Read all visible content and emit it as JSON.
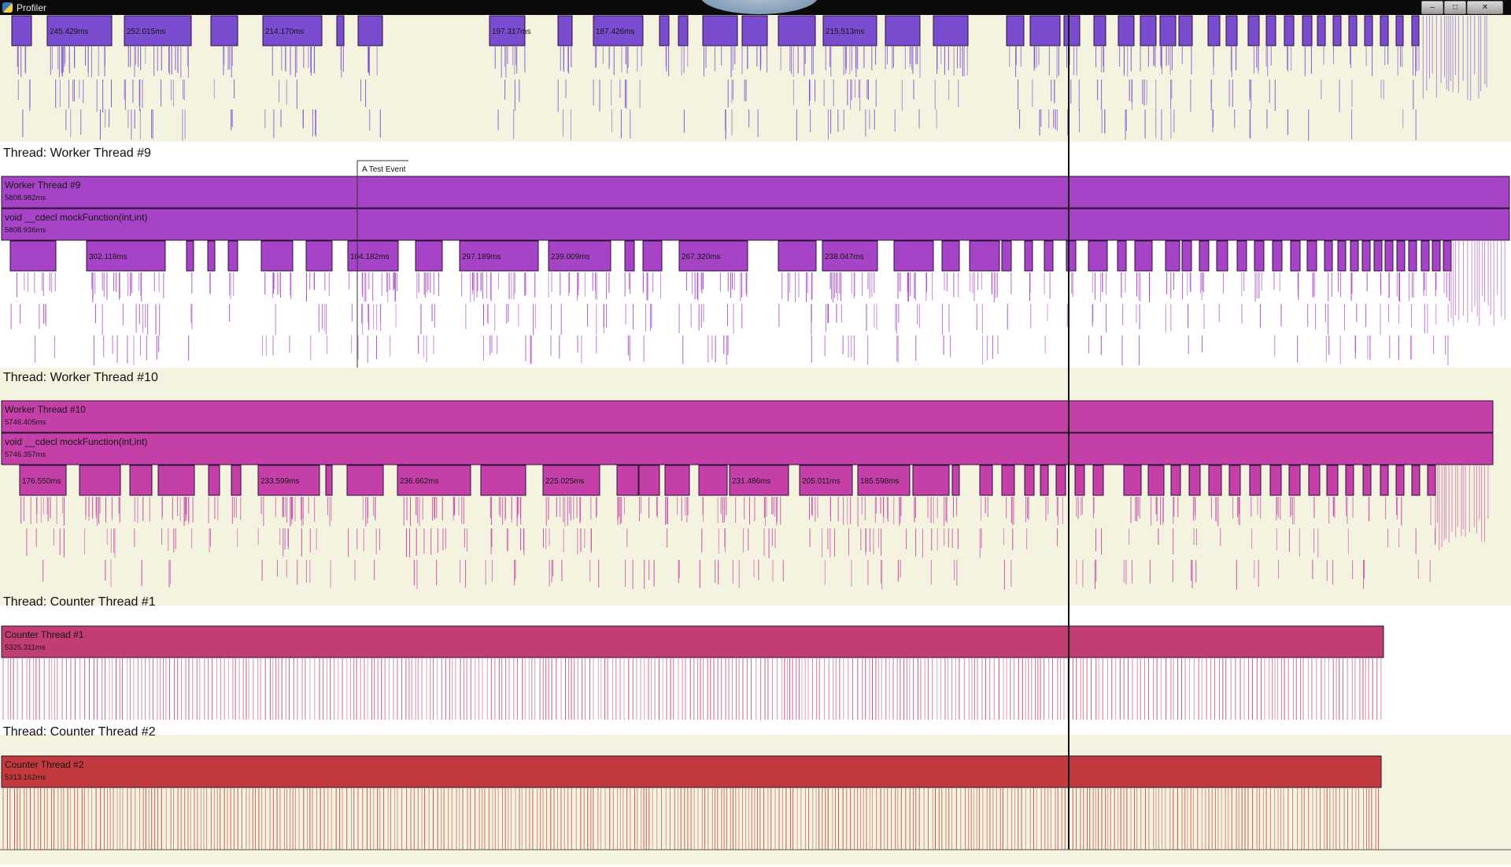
{
  "window": {
    "title": "Profiler",
    "buttons": [
      {
        "name": "minimize-button",
        "glyph": "–"
      },
      {
        "name": "maximize-button",
        "glyph": "□"
      },
      {
        "name": "close-button",
        "glyph": "✕"
      }
    ]
  },
  "colors": {
    "bg_alt": "#f3f3df",
    "bg_white": "#ffffff",
    "top_purple": "#7a4ccf",
    "worker9": "#a743c7",
    "worker10": "#c53fa8",
    "counter1": "#c13d72",
    "counter2": "#c23a3e",
    "cursor": "#111111"
  },
  "event": {
    "label": "A Test Event"
  },
  "tracks": [
    {
      "key": "top",
      "label": "",
      "color": "#7a4ccf",
      "top_segments": [
        {
          "label": ""
        },
        {
          "label": "245.429ms"
        },
        {
          "label": "252.015ms"
        },
        {
          "label": ""
        },
        {
          "label": "214.170ms"
        },
        {
          "label": ""
        },
        {
          "label": "197.317ms"
        },
        {
          "label": ""
        },
        {
          "label": "187.426ms"
        },
        {
          "label": ""
        },
        {
          "label": "215.513ms"
        },
        {
          "label": ""
        }
      ]
    },
    {
      "key": "worker9",
      "label": "Thread: Worker Thread #9",
      "color": "#a743c7",
      "bars": [
        {
          "name": "Worker Thread #9",
          "duration": "5808.982ms"
        },
        {
          "name": "void __cdecl mockFunction(int,int)",
          "duration": "5808.936ms"
        }
      ],
      "segments": [
        {
          "label": ""
        },
        {
          "label": "302.118ms"
        },
        {
          "label": ""
        },
        {
          "label": ""
        },
        {
          "label": ""
        },
        {
          "label": "104.182ms"
        },
        {
          "label": ""
        },
        {
          "label": "297.189ms"
        },
        {
          "label": "239.009ms"
        },
        {
          "label": ""
        },
        {
          "label": "267.320ms"
        },
        {
          "label": ""
        },
        {
          "label": "238.047ms"
        },
        {
          "label": ""
        }
      ]
    },
    {
      "key": "worker10",
      "label": "Thread: Worker Thread #10",
      "color": "#c53fa8",
      "bars": [
        {
          "name": "Worker Thread #10",
          "duration": "5746.405ms"
        },
        {
          "name": "void __cdecl mockFunction(int,int)",
          "duration": "5746.357ms"
        }
      ],
      "segments": [
        {
          "label": "176.550ms"
        },
        {
          "label": ""
        },
        {
          "label": ""
        },
        {
          "label": ""
        },
        {
          "label": "233.599ms"
        },
        {
          "label": ""
        },
        {
          "label": "236.662ms"
        },
        {
          "label": ""
        },
        {
          "label": "225.025ms"
        },
        {
          "label": ""
        },
        {
          "label": "231.486ms"
        },
        {
          "label": "205.011ms"
        },
        {
          "label": "185.598ms"
        },
        {
          "label": ""
        }
      ]
    },
    {
      "key": "counter1",
      "label": "Thread: Counter Thread #1",
      "color": "#c13d72",
      "bars": [
        {
          "name": "Counter Thread #1",
          "duration": "5325.311ms"
        }
      ]
    },
    {
      "key": "counter2",
      "label": "Thread: Counter Thread #2",
      "color": "#c23a3e",
      "bars": [
        {
          "name": "Counter Thread #2",
          "duration": "5313.162ms"
        }
      ]
    }
  ]
}
